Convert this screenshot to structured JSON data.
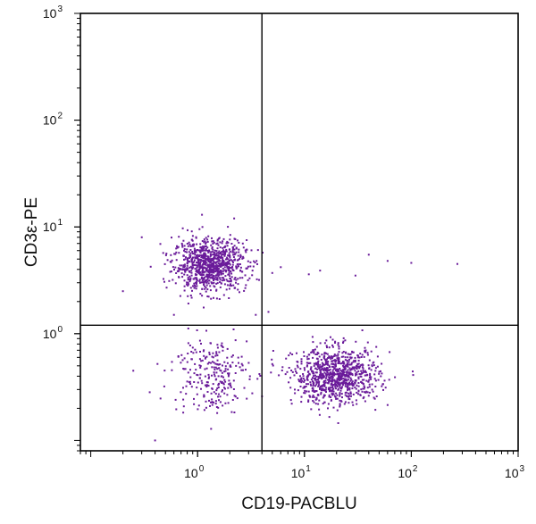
{
  "chart_data": {
    "type": "scatter",
    "title": "",
    "xlabel": "CD19-PACBLU",
    "ylabel": "CD3ε-PE",
    "x_scale": "log",
    "y_scale": "log",
    "xlim": [
      0.08,
      1000
    ],
    "ylim": [
      0.08,
      1000
    ],
    "tick_base": "10",
    "x_ticks": [
      {
        "base": "10",
        "exp": "0",
        "value": 1
      },
      {
        "base": "10",
        "exp": "1",
        "value": 10
      },
      {
        "base": "10",
        "exp": "2",
        "value": 100
      },
      {
        "base": "10",
        "exp": "3",
        "value": 1000
      }
    ],
    "y_ticks": [
      {
        "base": "10",
        "exp": "0",
        "value": 1
      },
      {
        "base": "10",
        "exp": "1",
        "value": 10
      },
      {
        "base": "10",
        "exp": "2",
        "value": 100
      },
      {
        "base": "10",
        "exp": "3",
        "value": 1000
      }
    ],
    "quadrant_gates": {
      "x": 4,
      "y": 1.2
    },
    "grid": false,
    "point_color": "#6a1b9a",
    "clusters": [
      {
        "center": [
          1.3,
          4.4
        ],
        "spread_log10": [
          0.17,
          0.12
        ],
        "count": 900
      },
      {
        "center": [
          20,
          0.4
        ],
        "spread_log10": [
          0.2,
          0.13
        ],
        "count": 900
      },
      {
        "center": [
          1.3,
          0.42
        ],
        "spread_log10": [
          0.18,
          0.18
        ],
        "count": 260
      }
    ],
    "outliers": [
      [
        30,
        3.5
      ],
      [
        60,
        4.8
      ],
      [
        40,
        5.5
      ],
      [
        11,
        3.6
      ],
      [
        14,
        3.9
      ],
      [
        100,
        4.6
      ],
      [
        270,
        4.5
      ],
      [
        5,
        3.7
      ],
      [
        6,
        4.2
      ],
      [
        4.6,
        1.6
      ],
      [
        3.5,
        1.5
      ],
      [
        0.25,
        0.45
      ],
      [
        0.2,
        2.5
      ],
      [
        0.3,
        8.0
      ],
      [
        0.4,
        0.1
      ],
      [
        2.2,
        12
      ],
      [
        0.6,
        1.5
      ],
      [
        1.1,
        13
      ]
    ]
  }
}
